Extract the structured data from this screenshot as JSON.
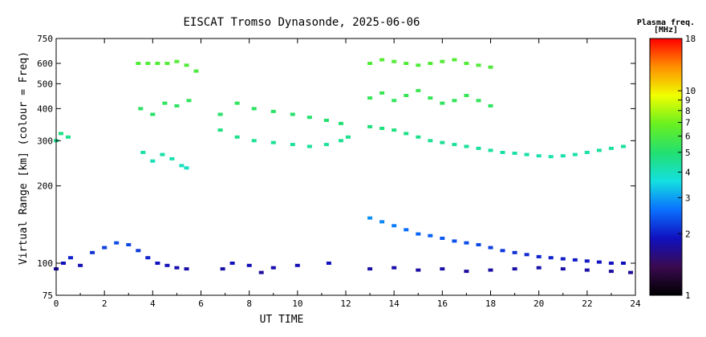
{
  "chart_data": {
    "type": "scatter",
    "title": "EISCAT Tromso Dynasonde, 2025-06-06",
    "xlabel": "UT TIME",
    "ylabel": "Virtual Range [km] (colour = Freq)",
    "xlim": [
      0,
      24
    ],
    "ylim": [
      75,
      750
    ],
    "y_scale": "log",
    "x_ticks": [
      "0",
      "2",
      "4",
      "6",
      "8",
      "10",
      "12",
      "14",
      "16",
      "18",
      "20",
      "22",
      "24"
    ],
    "y_ticks": [
      "75",
      "100",
      "200",
      "300",
      "400",
      "500",
      "600",
      "750"
    ],
    "grid": false,
    "colorbar": {
      "title_line1": "Plasma freq.",
      "title_line2": "[MHz]",
      "min": 1,
      "max": 18,
      "scale": "log",
      "ticks": [
        "1",
        "2",
        "3",
        "4",
        "5",
        "6",
        "7",
        "8",
        "9",
        "10",
        "18"
      ],
      "colors": [
        "#000000",
        "#3a0a50",
        "#1010c0",
        "#0a70ff",
        "#14e0e0",
        "#22e070",
        "#6af020",
        "#f0ff00",
        "#ff9000",
        "#ff0000"
      ]
    },
    "series": [
      {
        "x": [
          3.4,
          3.8,
          4.2,
          4.6,
          5.0,
          5.4,
          5.8
        ],
        "y": [
          600,
          600,
          600,
          600,
          610,
          590,
          560
        ]
      },
      {
        "x": [
          3.5,
          4.0,
          4.5,
          5.0,
          5.5
        ],
        "y": [
          400,
          380,
          420,
          410,
          430
        ]
      },
      {
        "x": [
          3.6,
          4.0,
          4.4,
          4.8,
          5.2,
          5.4
        ],
        "y": [
          270,
          250,
          265,
          255,
          240,
          235
        ]
      },
      {
        "x": [
          0.0,
          0.3,
          0.6,
          1.0,
          1.5,
          2.0,
          2.5,
          3.0,
          3.4,
          3.8,
          4.2,
          4.6,
          5.0,
          5.4
        ],
        "y": [
          95,
          100,
          105,
          98,
          110,
          115,
          120,
          118,
          112,
          105,
          100,
          98,
          96,
          95
        ]
      },
      {
        "x": [
          0.0,
          0.2,
          0.5
        ],
        "y": [
          300,
          320,
          310
        ]
      },
      {
        "x": [
          6.8,
          7.5,
          8.2,
          9.0,
          9.8,
          10.5,
          11.2,
          11.8,
          12.1
        ],
        "y": [
          330,
          310,
          300,
          295,
          290,
          285,
          290,
          300,
          310
        ]
      },
      {
        "x": [
          6.8,
          7.5,
          8.2,
          9.0,
          9.8,
          10.5,
          11.2,
          11.8
        ],
        "y": [
          380,
          420,
          400,
          390,
          380,
          370,
          360,
          350
        ]
      },
      {
        "x": [
          6.9,
          7.3,
          8.0,
          8.5,
          9.0,
          10.0,
          11.3
        ],
        "y": [
          95,
          100,
          98,
          92,
          96,
          98,
          100
        ]
      },
      {
        "x": [
          13.0,
          13.5,
          14.0,
          14.5,
          15.0,
          15.5,
          16.0,
          16.5,
          17.0,
          17.5,
          18.0
        ],
        "y": [
          600,
          620,
          610,
          600,
          590,
          600,
          610,
          620,
          600,
          590,
          580
        ]
      },
      {
        "x": [
          13.0,
          13.5,
          14.0,
          14.5,
          15.0,
          15.5,
          16.0,
          16.5,
          17.0,
          17.5,
          18.0
        ],
        "y": [
          440,
          460,
          430,
          450,
          470,
          440,
          420,
          430,
          450,
          430,
          410
        ]
      },
      {
        "x": [
          13.0,
          13.5,
          14.0,
          14.5,
          15.0,
          15.5,
          16.0,
          16.5,
          17.0,
          17.5,
          18.0,
          18.5,
          19.0,
          19.5,
          20.0,
          20.5,
          21.0,
          21.5,
          22.0,
          22.5,
          23.0,
          23.5
        ],
        "y": [
          340,
          335,
          330,
          320,
          310,
          300,
          295,
          290,
          285,
          280,
          275,
          270,
          268,
          265,
          262,
          260,
          262,
          265,
          270,
          275,
          280,
          285
        ]
      },
      {
        "x": [
          13.0,
          13.5,
          14.0,
          14.5,
          15.0,
          15.5,
          16.0,
          16.5,
          17.0,
          17.5,
          18.0,
          18.5,
          19.0,
          19.5,
          20.0,
          20.5,
          21.0,
          21.5,
          22.0,
          22.5,
          23.0,
          23.5
        ],
        "y": [
          150,
          145,
          140,
          135,
          130,
          128,
          125,
          122,
          120,
          118,
          115,
          112,
          110,
          108,
          106,
          105,
          104,
          103,
          102,
          101,
          100,
          100
        ]
      },
      {
        "x": [
          13.0,
          14.0,
          15.0,
          16.0,
          17.0,
          18.0,
          19.0,
          20.0,
          21.0,
          22.0,
          23.0,
          23.8
        ],
        "y": [
          95,
          96,
          94,
          95,
          93,
          94,
          95,
          96,
          95,
          94,
          93,
          92
        ]
      }
    ]
  }
}
